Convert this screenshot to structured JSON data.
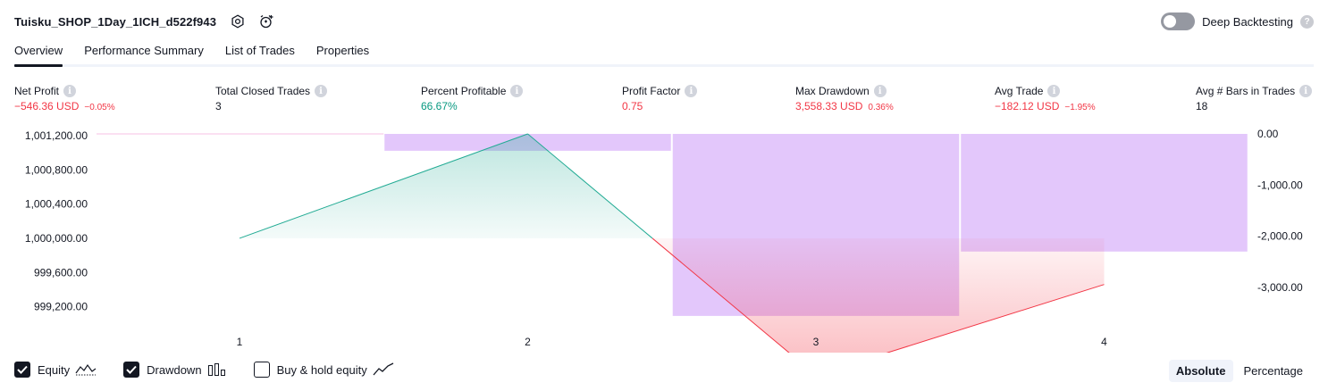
{
  "header": {
    "title": "Tuisku_SHOP_1Day_1ICH_d522f943",
    "deep_backtesting_label": "Deep Backtesting"
  },
  "tabs": [
    {
      "label": "Overview",
      "active": true
    },
    {
      "label": "Performance Summary",
      "active": false
    },
    {
      "label": "List of Trades",
      "active": false
    },
    {
      "label": "Properties",
      "active": false
    }
  ],
  "stats": {
    "net_profit": {
      "label": "Net Profit",
      "value": "−546.36 USD",
      "pct": "−0.05%"
    },
    "total_closed_trades": {
      "label": "Total Closed Trades",
      "value": "3"
    },
    "percent_profitable": {
      "label": "Percent Profitable",
      "value": "66.67%"
    },
    "profit_factor": {
      "label": "Profit Factor",
      "value": "0.75"
    },
    "max_drawdown": {
      "label": "Max Drawdown",
      "value": "3,558.33 USD",
      "pct": "0.36%"
    },
    "avg_trade": {
      "label": "Avg Trade",
      "value": "−182.12 USD",
      "pct": "−1.95%"
    },
    "avg_bars": {
      "label": "Avg # Bars in Trades",
      "value": "18"
    }
  },
  "chart_data": {
    "type": "line",
    "x": [
      1,
      2,
      3,
      4
    ],
    "x_tick_labels": [
      "1",
      "2",
      "3",
      "4"
    ],
    "series": [
      {
        "name": "Equity",
        "x": [
          1,
          2,
          3,
          4
        ],
        "values": [
          1000000.0,
          1001220.0,
          998400.0,
          999460.0
        ]
      },
      {
        "name": "Drawdown",
        "type": "bar",
        "x": [
          2,
          3,
          4
        ],
        "values": [
          -330,
          -3558.33,
          -2300
        ]
      }
    ],
    "left_axis": {
      "ticks": [
        1001200,
        1000800,
        1000400,
        1000000,
        999600,
        999200
      ],
      "tick_labels": [
        "1,001,200.00",
        "1,000,800.00",
        "1,000,400.00",
        "1,000,000.00",
        "999,600.00",
        "999,200.00"
      ],
      "range": [
        999050,
        1001220
      ]
    },
    "right_axis": {
      "ticks": [
        0,
        -1000,
        -2000,
        -3000
      ],
      "tick_labels": [
        "0.00",
        "-1,000.00",
        "-2,000.00",
        "-3,000.00"
      ],
      "range": [
        -3630,
        0
      ]
    },
    "grid": false,
    "colors": {
      "equity_up": "#22ab94",
      "equity_down": "#f23645",
      "drawdown": "#e1c4fb",
      "baseline": "#f7c2e4"
    }
  },
  "legend": {
    "equity": {
      "label": "Equity",
      "checked": true
    },
    "drawdown": {
      "label": "Drawdown",
      "checked": true
    },
    "buyhold": {
      "label": "Buy & hold equity",
      "checked": false
    }
  },
  "mode": {
    "absolute": "Absolute",
    "percentage": "Percentage",
    "selected": "Absolute"
  }
}
